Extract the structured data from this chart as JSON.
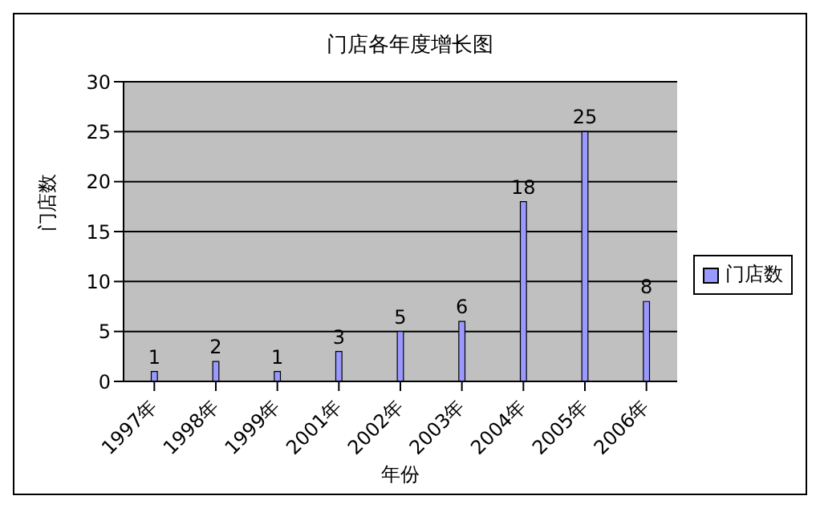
{
  "chart_data": {
    "type": "bar",
    "title": "门店各年度增长图",
    "xlabel": "年份",
    "ylabel": "门店数",
    "categories": [
      "1997年",
      "1998年",
      "1999年",
      "2001年",
      "2002年",
      "2003年",
      "2004年",
      "2005年",
      "2006年"
    ],
    "series": [
      {
        "name": "门店数",
        "color": "#9999ff",
        "values": [
          1,
          2,
          1,
          3,
          5,
          6,
          18,
          25,
          8
        ]
      }
    ],
    "ylim": [
      0,
      30
    ],
    "yticks": [
      0,
      5,
      10,
      15,
      20,
      25,
      30
    ],
    "grid": "y",
    "legend": "right",
    "data_labels": true
  }
}
